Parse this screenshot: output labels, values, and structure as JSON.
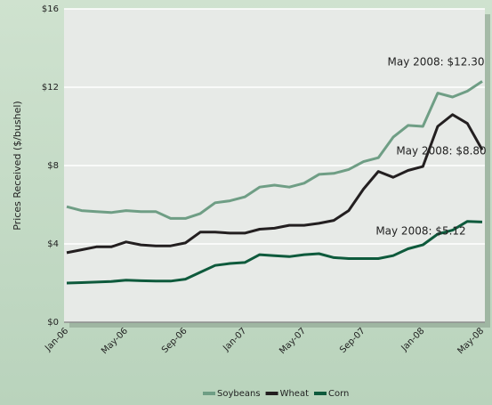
{
  "chart_data": {
    "type": "line",
    "y_label": "Prices Received ($/bushel)",
    "categories": [
      "Jan-06",
      null,
      null,
      null,
      "May-06",
      null,
      null,
      null,
      "Sep-06",
      null,
      null,
      null,
      "Jan-07",
      null,
      null,
      null,
      "May-07",
      null,
      null,
      null,
      "Sep-07",
      null,
      null,
      null,
      "Jan-08",
      null,
      null,
      null,
      "May-08"
    ],
    "series": [
      {
        "name": "Soybeans",
        "color": "#6f9e85",
        "values": [
          5.9,
          5.7,
          5.65,
          5.6,
          5.7,
          5.65,
          5.65,
          5.3,
          5.3,
          5.55,
          6.1,
          6.2,
          6.4,
          6.9,
          7.0,
          6.9,
          7.1,
          7.55,
          7.6,
          7.8,
          8.2,
          8.4,
          9.45,
          10.05,
          10.0,
          11.7,
          11.5,
          11.8,
          12.3
        ]
      },
      {
        "name": "Wheat",
        "color": "#231f20",
        "values": [
          3.55,
          3.7,
          3.85,
          3.85,
          4.1,
          3.95,
          3.9,
          3.9,
          4.05,
          4.6,
          4.6,
          4.55,
          4.55,
          4.75,
          4.8,
          4.95,
          4.95,
          5.05,
          5.2,
          5.7,
          6.8,
          7.7,
          7.4,
          7.75,
          7.95,
          10.0,
          10.6,
          10.15,
          8.8
        ]
      },
      {
        "name": "Corn",
        "color": "#0e5a3c",
        "values": [
          2.0,
          2.02,
          2.05,
          2.08,
          2.15,
          2.12,
          2.1,
          2.1,
          2.2,
          2.55,
          2.9,
          3.0,
          3.05,
          3.45,
          3.4,
          3.35,
          3.45,
          3.5,
          3.3,
          3.25,
          3.25,
          3.25,
          3.4,
          3.75,
          3.95,
          4.5,
          4.7,
          5.15,
          5.12
        ]
      }
    ],
    "annotations": [
      "May 2008: $12.30",
      "May 2008: $8.80",
      "May 2008: $5.12"
    ],
    "ylim": [
      0,
      16
    ],
    "yticks": [
      {
        "value": 0,
        "label": "$0"
      },
      {
        "value": 4,
        "label": "$4"
      },
      {
        "value": 8,
        "label": "$8"
      },
      {
        "value": 12,
        "label": "$12"
      },
      {
        "value": 16,
        "label": "$16"
      }
    ],
    "grid": true,
    "legend": "bottom"
  }
}
